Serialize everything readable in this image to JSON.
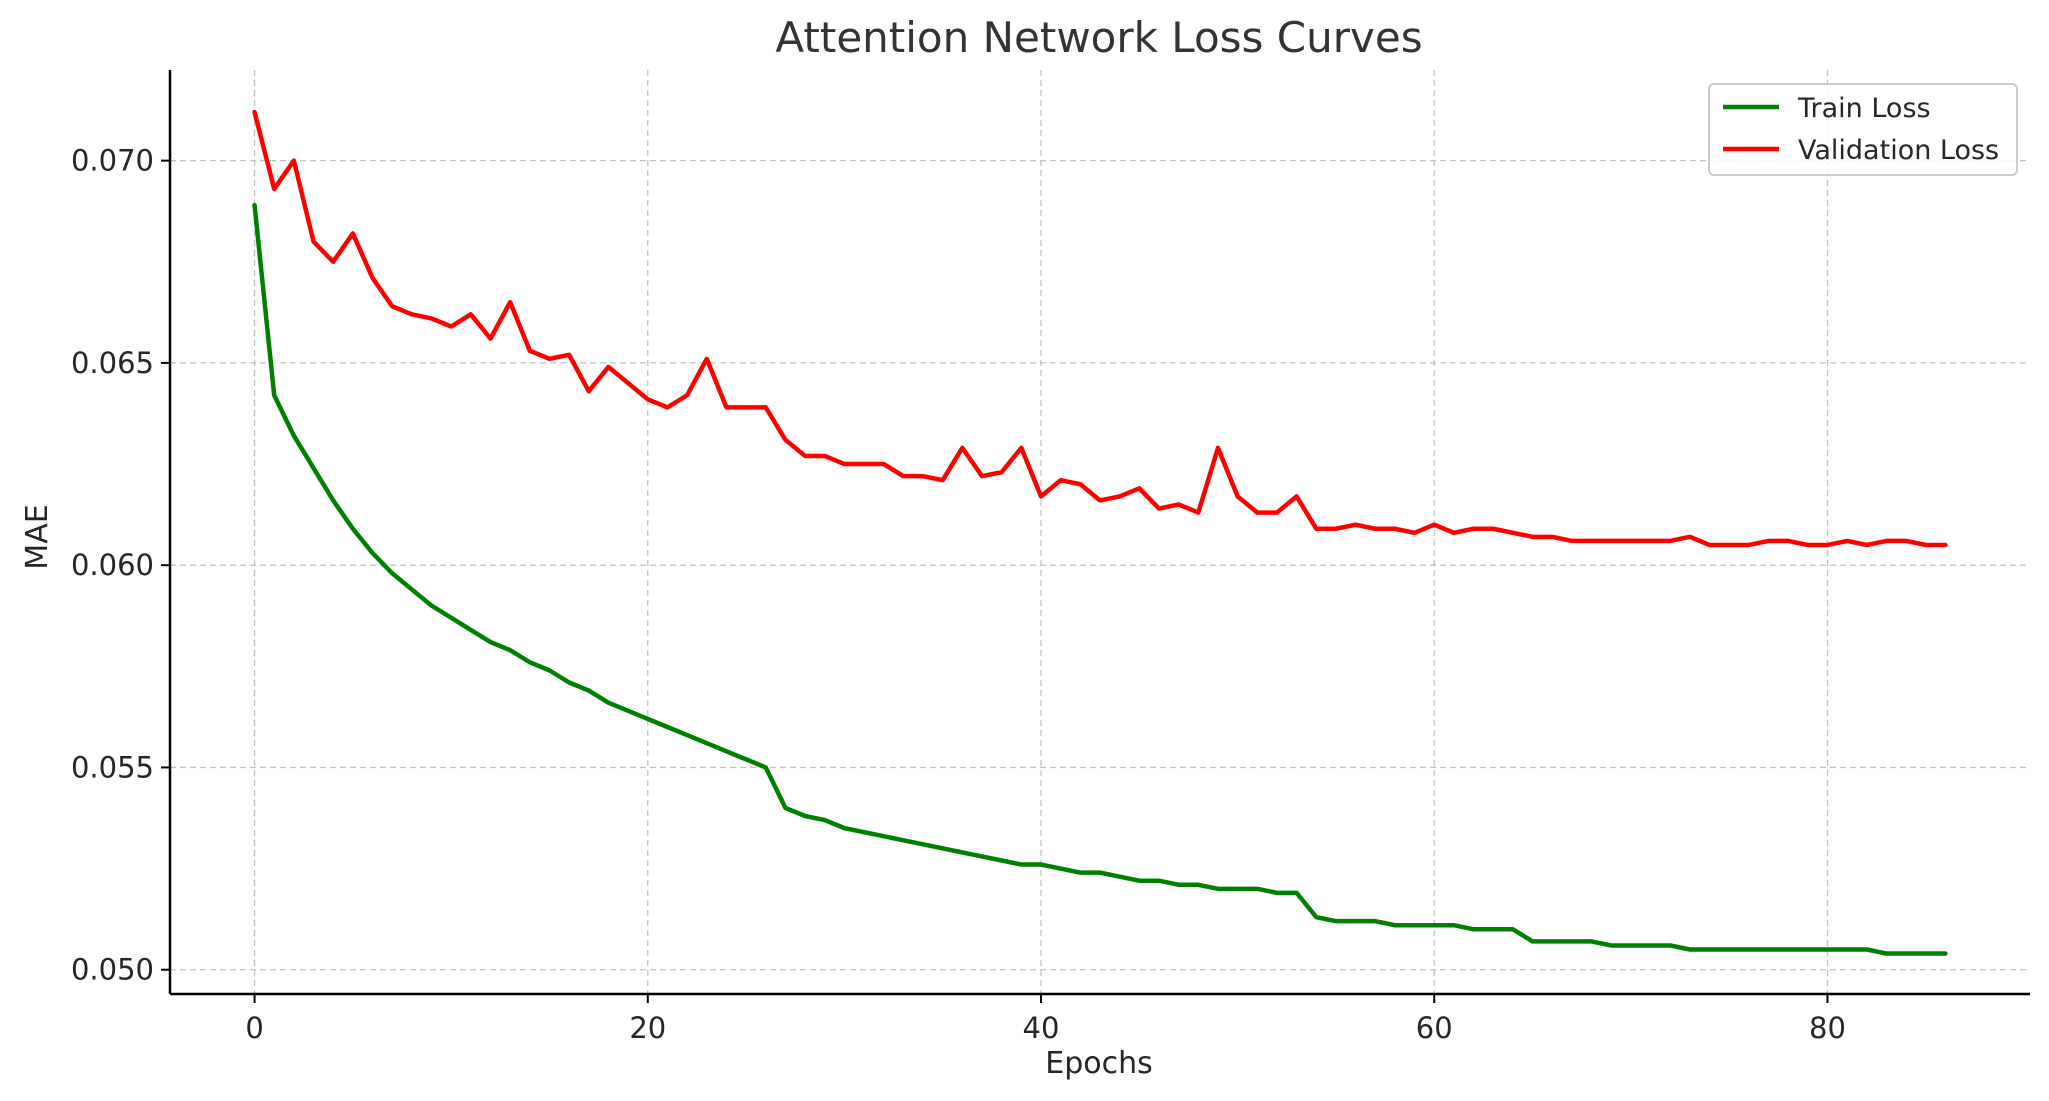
{
  "chart_data": {
    "type": "line",
    "title": "Attention Network Loss Curves",
    "xlabel": "Epochs",
    "ylabel": "MAE",
    "xlim": [
      -4.3,
      90.3
    ],
    "ylim": [
      0.0494,
      0.07224
    ],
    "xticks": [
      0,
      20,
      40,
      60,
      80
    ],
    "yticks": [
      0.05,
      0.055,
      0.06,
      0.065,
      0.07
    ],
    "xtick_labels": [
      "0",
      "20",
      "40",
      "60",
      "80"
    ],
    "ytick_labels": [
      "0.050",
      "0.055",
      "0.060",
      "0.065",
      "0.070"
    ],
    "grid": true,
    "legend_position": "top-right",
    "x": [
      0,
      1,
      2,
      3,
      4,
      5,
      6,
      7,
      8,
      9,
      10,
      11,
      12,
      13,
      14,
      15,
      16,
      17,
      18,
      19,
      20,
      21,
      22,
      23,
      24,
      25,
      26,
      27,
      28,
      29,
      30,
      31,
      32,
      33,
      34,
      35,
      36,
      37,
      38,
      39,
      40,
      41,
      42,
      43,
      44,
      45,
      46,
      47,
      48,
      49,
      50,
      51,
      52,
      53,
      54,
      55,
      56,
      57,
      58,
      59,
      60,
      61,
      62,
      63,
      64,
      65,
      66,
      67,
      68,
      69,
      70,
      71,
      72,
      73,
      74,
      75,
      76,
      77,
      78,
      79,
      80,
      81,
      82,
      83,
      84,
      85,
      86
    ],
    "series": [
      {
        "name": "Train Loss",
        "color": "#008000",
        "values": [
          0.0689,
          0.0642,
          0.0632,
          0.0624,
          0.0616,
          0.0609,
          0.0603,
          0.0598,
          0.0594,
          0.059,
          0.0587,
          0.0584,
          0.0581,
          0.0579,
          0.0576,
          0.0574,
          0.0571,
          0.0569,
          0.0566,
          0.0564,
          0.0562,
          0.056,
          0.0558,
          0.0556,
          0.0554,
          0.0552,
          0.055,
          0.054,
          0.0538,
          0.0537,
          0.0535,
          0.0534,
          0.0533,
          0.0532,
          0.0531,
          0.053,
          0.0529,
          0.0528,
          0.0527,
          0.0526,
          0.0526,
          0.0525,
          0.0524,
          0.0524,
          0.0523,
          0.0522,
          0.0522,
          0.0521,
          0.0521,
          0.052,
          0.052,
          0.052,
          0.0519,
          0.0519,
          0.0513,
          0.0512,
          0.0512,
          0.0512,
          0.0511,
          0.0511,
          0.0511,
          0.0511,
          0.051,
          0.051,
          0.051,
          0.0507,
          0.0507,
          0.0507,
          0.0507,
          0.0506,
          0.0506,
          0.0506,
          0.0506,
          0.0505,
          0.0505,
          0.0505,
          0.0505,
          0.0505,
          0.0505,
          0.0505,
          0.0505,
          0.0505,
          0.0505,
          0.0504,
          0.0504,
          0.0504,
          0.0504
        ]
      },
      {
        "name": "Validation Loss",
        "color": "#ff0000",
        "values": [
          0.0712,
          0.0693,
          0.07,
          0.068,
          0.0675,
          0.0682,
          0.0671,
          0.0664,
          0.0662,
          0.0661,
          0.0659,
          0.0662,
          0.0656,
          0.0665,
          0.0653,
          0.0651,
          0.0652,
          0.0643,
          0.0649,
          0.0645,
          0.0641,
          0.0639,
          0.0642,
          0.0651,
          0.0639,
          0.0639,
          0.0639,
          0.0631,
          0.0627,
          0.0627,
          0.0625,
          0.0625,
          0.0625,
          0.0622,
          0.0622,
          0.0621,
          0.0629,
          0.0622,
          0.0623,
          0.0629,
          0.0617,
          0.0621,
          0.062,
          0.0616,
          0.0617,
          0.0619,
          0.0614,
          0.0615,
          0.0613,
          0.0629,
          0.0617,
          0.0613,
          0.0613,
          0.0617,
          0.0609,
          0.0609,
          0.061,
          0.0609,
          0.0609,
          0.0608,
          0.061,
          0.0608,
          0.0609,
          0.0609,
          0.0608,
          0.0607,
          0.0607,
          0.0606,
          0.0606,
          0.0606,
          0.0606,
          0.0606,
          0.0606,
          0.0607,
          0.0605,
          0.0605,
          0.0605,
          0.0606,
          0.0606,
          0.0605,
          0.0605,
          0.0606,
          0.0605,
          0.0606,
          0.0606,
          0.0605,
          0.0605
        ]
      }
    ]
  }
}
